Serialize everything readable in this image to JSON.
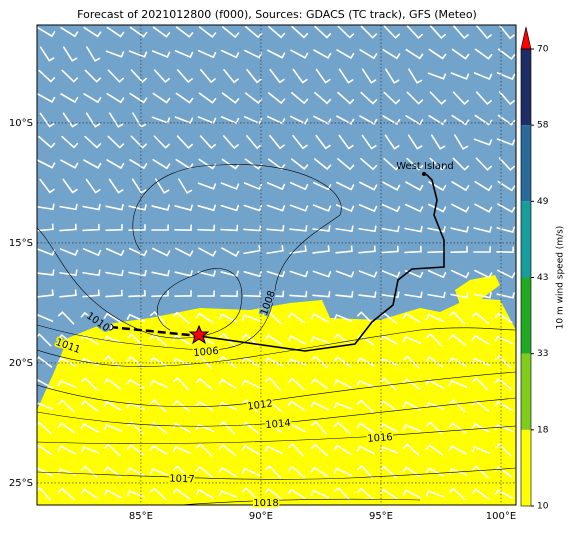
{
  "map": {
    "title": "Forecast of 2021012800 (f000), Sources: GDACS (TC track), GFS (Meteo)",
    "lonlim": [
      80.67,
      100.625
    ],
    "latlim": [
      -25.92,
      -5.92
    ],
    "lonticks": [
      {
        "value": 85,
        "label": "85°E"
      },
      {
        "value": 90,
        "label": "90°E"
      },
      {
        "value": 95,
        "label": "95°E"
      },
      {
        "value": 100,
        "label": "100°E"
      }
    ],
    "latticks": [
      {
        "value": -10,
        "label": "10°S"
      },
      {
        "value": -15,
        "label": "15°S"
      },
      {
        "value": -20,
        "label": "20°S"
      },
      {
        "value": -25,
        "label": "25°S"
      }
    ],
    "colorbar": {
      "label": "10 m wind speed (m/s)",
      "ticks": [
        10,
        18,
        33,
        43,
        49,
        58,
        70
      ],
      "colors": [
        "#ffff00",
        "#80cc1a",
        "#22a822",
        "#1a9c9c",
        "#2a6a9a",
        "#1e2d66"
      ],
      "extend_color": "#ff0000"
    },
    "place": "West Island",
    "isobar_labels": [
      1010,
      1011,
      1006,
      1008,
      1012,
      1014,
      1016,
      1017,
      1018
    ]
  }
}
